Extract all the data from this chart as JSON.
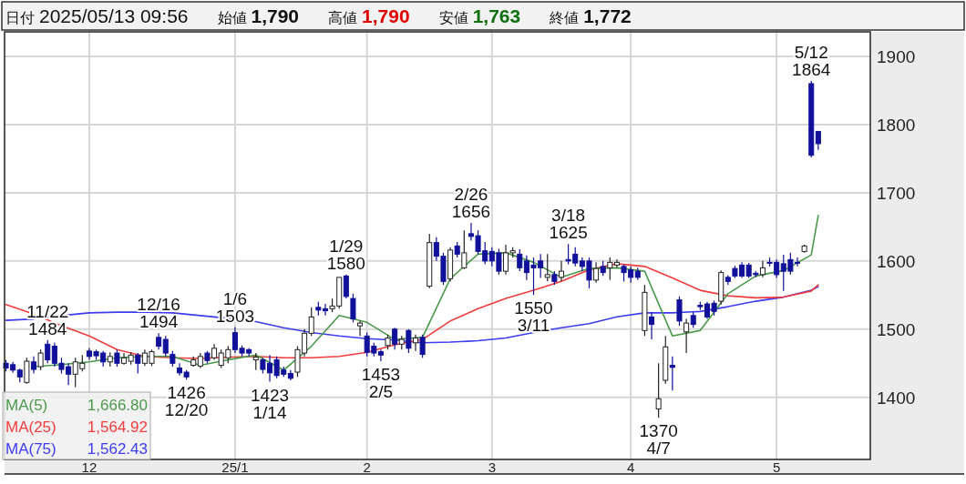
{
  "chart_data": {
    "type": "candlestick",
    "categories": [
      null,
      null,
      null,
      null,
      null,
      null,
      null,
      null,
      null,
      null,
      null,
      null,
      "12",
      null,
      null,
      null,
      null,
      null,
      null,
      null,
      null,
      null,
      null,
      null,
      null,
      null,
      null,
      null,
      null,
      null,
      null,
      null,
      null,
      "25/1",
      null,
      null,
      null,
      null,
      null,
      null,
      null,
      null,
      null,
      null,
      null,
      null,
      null,
      null,
      null,
      null,
      null,
      null,
      "2",
      null,
      null,
      null,
      null,
      null,
      null,
      null,
      null,
      null,
      null,
      null,
      null,
      null,
      null,
      null,
      null,
      null,
      "3",
      null,
      null,
      null,
      null,
      null,
      null,
      null,
      null,
      null,
      null,
      null,
      null,
      null,
      null,
      null,
      null,
      null,
      null,
      null,
      "4",
      null,
      null,
      null,
      null,
      null,
      null,
      null,
      null,
      null,
      null,
      null,
      null,
      null,
      null,
      null,
      null,
      null,
      null,
      null,
      null,
      "5",
      null,
      null,
      null,
      null,
      null,
      null
    ],
    "ohlc": [
      [
        1450,
        1455,
        1438,
        1443
      ],
      [
        1448,
        1452,
        1436,
        1440
      ],
      [
        1440,
        1442,
        1422,
        1430
      ],
      [
        1422,
        1458,
        1420,
        1453
      ],
      [
        1452,
        1460,
        1435,
        1441
      ],
      [
        1445,
        1470,
        1440,
        1465
      ],
      [
        1478,
        1484,
        1450,
        1455
      ],
      [
        1475,
        1480,
        1445,
        1450
      ],
      [
        1450,
        1458,
        1435,
        1441
      ],
      [
        1445,
        1450,
        1418,
        1434
      ],
      [
        1434,
        1458,
        1415,
        1452
      ],
      [
        1442,
        1462,
        1438,
        1450
      ],
      [
        1468,
        1472,
        1455,
        1460
      ],
      [
        1467,
        1470,
        1455,
        1461
      ],
      [
        1465,
        1468,
        1445,
        1452
      ],
      [
        1452,
        1466,
        1445,
        1460
      ],
      [
        1465,
        1470,
        1445,
        1450
      ],
      [
        1450,
        1465,
        1448,
        1458
      ],
      [
        1453,
        1466,
        1448,
        1462
      ],
      [
        1462,
        1465,
        1435,
        1450
      ],
      [
        1450,
        1470,
        1446,
        1465
      ],
      [
        1450,
        1470,
        1446,
        1467
      ],
      [
        1488,
        1494,
        1470,
        1475
      ],
      [
        1485,
        1490,
        1460,
        1465
      ],
      [
        1463,
        1468,
        1445,
        1450
      ],
      [
        1443,
        1450,
        1432,
        1436
      ],
      [
        1437,
        1440,
        1426,
        1430
      ],
      [
        1447,
        1460,
        1445,
        1455
      ],
      [
        1446,
        1465,
        1443,
        1460
      ],
      [
        1465,
        1468,
        1450,
        1454
      ],
      [
        1458,
        1478,
        1455,
        1472
      ],
      [
        1447,
        1470,
        1443,
        1465
      ],
      [
        1458,
        1475,
        1450,
        1470
      ],
      [
        1495,
        1503,
        1465,
        1470
      ],
      [
        1472,
        1476,
        1460,
        1465
      ],
      [
        1470,
        1472,
        1460,
        1465
      ],
      [
        1455,
        1465,
        1440,
        1459
      ],
      [
        1455,
        1458,
        1435,
        1441
      ],
      [
        1450,
        1462,
        1423,
        1436
      ],
      [
        1455,
        1460,
        1428,
        1432
      ],
      [
        1440,
        1445,
        1430,
        1434
      ],
      [
        1435,
        1440,
        1425,
        1428
      ],
      [
        1437,
        1475,
        1430,
        1470
      ],
      [
        1465,
        1500,
        1460,
        1494
      ],
      [
        1494,
        1532,
        1490,
        1518
      ],
      [
        1532,
        1540,
        1520,
        1528
      ],
      [
        1530,
        1537,
        1520,
        1527
      ],
      [
        1530,
        1545,
        1525,
        1534
      ],
      [
        1534,
        1576,
        1530,
        1576
      ],
      [
        1578,
        1580,
        1545,
        1548
      ],
      [
        1545,
        1552,
        1510,
        1515
      ],
      [
        1505,
        1512,
        1490,
        1509
      ],
      [
        1490,
        1495,
        1460,
        1466
      ],
      [
        1475,
        1480,
        1460,
        1465
      ],
      [
        1467,
        1470,
        1453,
        1462
      ],
      [
        1476,
        1492,
        1470,
        1487
      ],
      [
        1500,
        1502,
        1470,
        1478
      ],
      [
        1478,
        1490,
        1470,
        1485
      ],
      [
        1498,
        1500,
        1465,
        1472
      ],
      [
        1480,
        1492,
        1468,
        1487
      ],
      [
        1488,
        1492,
        1458,
        1463
      ],
      [
        1563,
        1640,
        1560,
        1627
      ],
      [
        1627,
        1635,
        1600,
        1607
      ],
      [
        1607,
        1612,
        1565,
        1570
      ],
      [
        1574,
        1620,
        1570,
        1616
      ],
      [
        1622,
        1628,
        1605,
        1610
      ],
      [
        1590,
        1645,
        1588,
        1612
      ],
      [
        1640,
        1656,
        1630,
        1636
      ],
      [
        1637,
        1645,
        1610,
        1614
      ],
      [
        1615,
        1628,
        1595,
        1600
      ],
      [
        1614,
        1620,
        1592,
        1600
      ],
      [
        1612,
        1618,
        1580,
        1585
      ],
      [
        1585,
        1624,
        1580,
        1612
      ],
      [
        1612,
        1620,
        1605,
        1615
      ],
      [
        1610,
        1617,
        1585,
        1590
      ],
      [
        1600,
        1608,
        1572,
        1583
      ],
      [
        1594,
        1605,
        1550,
        1590
      ],
      [
        1600,
        1610,
        1575,
        1590
      ],
      [
        1576,
        1610,
        1570,
        1580
      ],
      [
        1580,
        1585,
        1565,
        1570
      ],
      [
        1576,
        1600,
        1570,
        1585
      ],
      [
        1602,
        1625,
        1595,
        1600
      ],
      [
        1610,
        1620,
        1592,
        1597
      ],
      [
        1600,
        1605,
        1585,
        1592
      ],
      [
        1600,
        1605,
        1560,
        1572
      ],
      [
        1572,
        1598,
        1568,
        1589
      ],
      [
        1592,
        1600,
        1578,
        1583
      ],
      [
        1590,
        1605,
        1572,
        1598
      ],
      [
        1594,
        1602,
        1590,
        1598
      ],
      [
        1592,
        1595,
        1570,
        1583
      ],
      [
        1587,
        1592,
        1568,
        1576
      ],
      [
        1585,
        1590,
        1572,
        1576
      ],
      [
        1498,
        1565,
        1490,
        1554
      ],
      [
        1518,
        1525,
        1485,
        1507
      ],
      [
        1383,
        1450,
        1370,
        1398
      ],
      [
        1425,
        1490,
        1420,
        1474
      ],
      [
        1447,
        1460,
        1410,
        1444
      ],
      [
        1543,
        1548,
        1505,
        1512
      ],
      [
        1496,
        1515,
        1465,
        1509
      ],
      [
        1520,
        1525,
        1502,
        1507
      ],
      [
        1535,
        1540,
        1528,
        1533
      ],
      [
        1537,
        1540,
        1515,
        1518
      ],
      [
        1538,
        1542,
        1520,
        1526
      ],
      [
        1541,
        1586,
        1536,
        1583
      ],
      [
        1576,
        1579,
        1565,
        1570
      ],
      [
        1589,
        1593,
        1575,
        1578
      ],
      [
        1594,
        1598,
        1575,
        1578
      ],
      [
        1594,
        1597,
        1575,
        1578
      ],
      [
        1582,
        1585,
        1576,
        1580
      ],
      [
        1580,
        1600,
        1576,
        1590
      ],
      [
        1598,
        1605,
        1592,
        1597
      ],
      [
        1598,
        1602,
        1575,
        1580
      ],
      [
        1596,
        1609,
        1556,
        1585
      ],
      [
        1602,
        1612,
        1580,
        1585
      ],
      [
        1598,
        1605,
        1592,
        1597
      ],
      [
        1614,
        1624,
        1612,
        1622
      ],
      [
        1860,
        1864,
        1752,
        1755
      ],
      [
        1790,
        1790,
        1763,
        1772
      ]
    ],
    "series": [
      {
        "name": "MA(5) 1,666.80",
        "type": "line",
        "color": "#4a9a4a",
        "values": [
          null,
          null,
          null,
          null,
          1445,
          null,
          null,
          null,
          1448,
          null,
          null,
          null,
          1452,
          null,
          null,
          null,
          1458,
          null,
          null,
          null,
          1460,
          null,
          null,
          null,
          1460,
          null,
          null,
          null,
          1447,
          null,
          null,
          null,
          1455,
          null,
          null,
          null,
          1462,
          null,
          null,
          null,
          1440,
          null,
          null,
          null,
          1475,
          null,
          null,
          null,
          1520,
          null,
          null,
          null,
          1510,
          null,
          null,
          null,
          1485,
          null,
          null,
          null,
          1488,
          null,
          null,
          null,
          1574,
          null,
          null,
          null,
          1610,
          null,
          null,
          null,
          1612,
          null,
          null,
          null,
          1598,
          null,
          null,
          null,
          1576,
          null,
          null,
          null,
          1589,
          null,
          null,
          null,
          1590,
          null,
          null,
          null,
          1585,
          null,
          null,
          null,
          1490,
          null,
          null,
          null,
          1498,
          null,
          null,
          null,
          1552,
          null,
          null,
          null,
          1578,
          null,
          null,
          null,
          1586,
          null,
          null,
          null,
          1609,
          1666.8
        ]
      },
      {
        "name": "MA(25) 1,564.92",
        "type": "line",
        "color": "#f03c3c",
        "values": [
          1536,
          null,
          null,
          null,
          1522,
          null,
          null,
          null,
          1505,
          null,
          null,
          null,
          1490,
          null,
          null,
          null,
          1470,
          null,
          null,
          null,
          1460,
          null,
          null,
          null,
          1458,
          null,
          null,
          null,
          1457,
          null,
          null,
          null,
          1459,
          null,
          null,
          null,
          1460,
          null,
          null,
          null,
          1458,
          null,
          null,
          null,
          1458,
          null,
          null,
          null,
          1460,
          null,
          null,
          null,
          1466,
          null,
          null,
          null,
          1477,
          null,
          null,
          null,
          1485,
          null,
          null,
          null,
          1512,
          null,
          null,
          null,
          1530,
          null,
          null,
          null,
          1545,
          null,
          null,
          null,
          1557,
          null,
          null,
          null,
          1570,
          null,
          null,
          null,
          1587,
          null,
          null,
          null,
          1596,
          null,
          null,
          null,
          1592,
          null,
          null,
          null,
          1575,
          null,
          null,
          null,
          1557,
          null,
          null,
          null,
          1549,
          null,
          null,
          null,
          1546,
          null,
          null,
          null,
          1547,
          null,
          null,
          null,
          1556,
          1564.92
        ]
      },
      {
        "name": "MA(75) 1,562.43",
        "type": "line",
        "color": "#3c3cf0",
        "values": [
          1513,
          null,
          null,
          null,
          1515,
          null,
          null,
          null,
          1520,
          null,
          null,
          null,
          1524,
          null,
          null,
          null,
          1525,
          null,
          null,
          null,
          1525,
          null,
          null,
          null,
          1524,
          null,
          null,
          null,
          1520,
          null,
          null,
          null,
          1516,
          null,
          null,
          null,
          1511,
          null,
          null,
          null,
          1502,
          null,
          null,
          null,
          1495,
          null,
          null,
          null,
          1490,
          null,
          null,
          null,
          1486,
          null,
          null,
          null,
          1484,
          null,
          null,
          null,
          1480,
          null,
          null,
          null,
          1481,
          null,
          null,
          null,
          1483,
          null,
          null,
          null,
          1487,
          null,
          null,
          null,
          1495,
          null,
          null,
          null,
          1502,
          null,
          null,
          null,
          1508,
          null,
          null,
          null,
          1518,
          null,
          null,
          null,
          1524,
          null,
          null,
          null,
          1524,
          null,
          null,
          null,
          1526,
          null,
          null,
          null,
          1533,
          null,
          null,
          null,
          1541,
          null,
          null,
          null,
          1547,
          null,
          null,
          null,
          1557,
          1562.43
        ]
      }
    ],
    "ylim": [
      1309,
      1936
    ],
    "yticks": [
      1400,
      1500,
      1600,
      1700,
      1800,
      1900
    ],
    "grid": true,
    "annotations": [
      "日付",
      "2025/05/13 09:56",
      "始値",
      "1,790",
      "高値",
      "1,790",
      "安値",
      "1,763",
      "終値",
      "1,772",
      {
        "text": "11/22\n1484",
        "y": 1484
      },
      {
        "text": "12/16\n1494",
        "y": 1494
      },
      {
        "text": "1/6\n1503",
        "y": 1503
      },
      {
        "text": "1/29\n1580",
        "y": 1580
      },
      {
        "text": "2/26\n1656",
        "y": 1656
      },
      {
        "text": "3/18\n1625",
        "y": 1625
      },
      {
        "text": "5/12\n1864",
        "y": 1864
      },
      {
        "text": "1426\n12/20",
        "y": 1426
      },
      {
        "text": "1423\n1/14",
        "y": 1423
      },
      {
        "text": "1453\n2/5",
        "y": 1453
      },
      {
        "text": "1550\n3/11",
        "y": 1550
      },
      {
        "text": "1370\n4/7",
        "y": 1370
      }
    ]
  }
}
